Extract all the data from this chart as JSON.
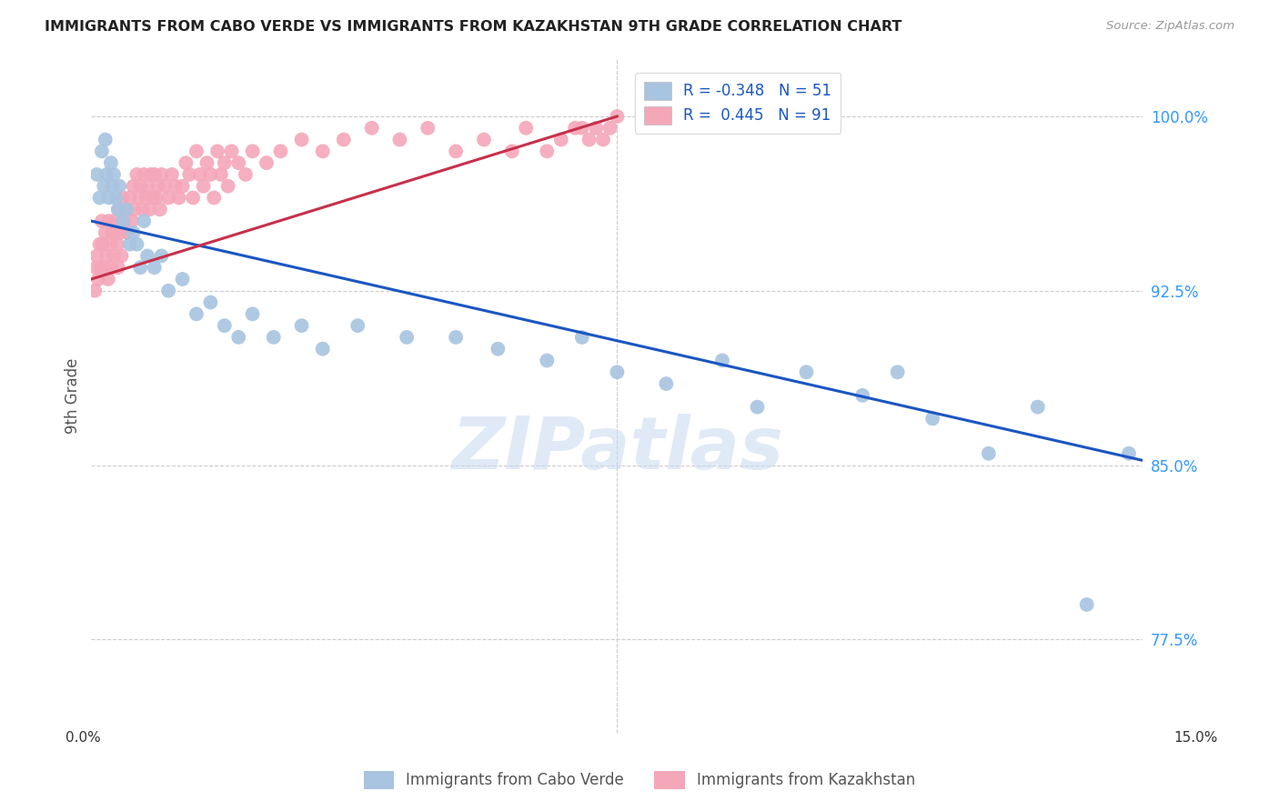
{
  "title": "IMMIGRANTS FROM CABO VERDE VS IMMIGRANTS FROM KAZAKHSTAN 9TH GRADE CORRELATION CHART",
  "source": "Source: ZipAtlas.com",
  "ylabel": "9th Grade",
  "xmin": 0.0,
  "xmax": 15.0,
  "ymin": 73.5,
  "ymax": 102.5,
  "yticks": [
    77.5,
    85.0,
    92.5,
    100.0
  ],
  "ytick_labels": [
    "77.5%",
    "85.0%",
    "92.5%",
    "100.0%"
  ],
  "legend1_label": "R = -0.348   N = 51",
  "legend2_label": "R =  0.445   N = 91",
  "cabo_verde_color": "#a8c4e0",
  "kazakhstan_color": "#f4a7b9",
  "cabo_verde_line_color": "#1a56c4",
  "kazakhstan_line_color": "#c8304a",
  "watermark_text": "ZIPatlas",
  "watermark_color": "#c8d8f0",
  "cabo_verde_x": [
    0.08,
    0.12,
    0.15,
    0.18,
    0.2,
    0.22,
    0.25,
    0.28,
    0.3,
    0.32,
    0.35,
    0.38,
    0.4,
    0.45,
    0.5,
    0.55,
    0.6,
    0.65,
    0.7,
    0.75,
    0.8,
    0.9,
    1.0,
    1.1,
    1.3,
    1.5,
    1.7,
    1.9,
    2.1,
    2.3,
    2.6,
    3.0,
    3.3,
    3.8,
    4.5,
    5.2,
    5.8,
    6.5,
    7.0,
    7.5,
    8.2,
    9.0,
    9.5,
    10.2,
    11.0,
    11.5,
    12.0,
    12.8,
    13.5,
    14.2,
    14.8
  ],
  "cabo_verde_y": [
    97.5,
    96.5,
    98.5,
    97.0,
    99.0,
    97.5,
    96.5,
    98.0,
    97.0,
    97.5,
    96.5,
    96.0,
    97.0,
    95.5,
    96.0,
    94.5,
    95.0,
    94.5,
    93.5,
    95.5,
    94.0,
    93.5,
    94.0,
    92.5,
    93.0,
    91.5,
    92.0,
    91.0,
    90.5,
    91.5,
    90.5,
    91.0,
    90.0,
    91.0,
    90.5,
    90.5,
    90.0,
    89.5,
    90.5,
    89.0,
    88.5,
    89.5,
    87.5,
    89.0,
    88.0,
    89.0,
    87.0,
    85.5,
    87.5,
    79.0,
    85.5
  ],
  "kazakhstan_x": [
    0.05,
    0.07,
    0.08,
    0.1,
    0.12,
    0.13,
    0.15,
    0.16,
    0.18,
    0.2,
    0.22,
    0.24,
    0.25,
    0.27,
    0.28,
    0.3,
    0.32,
    0.33,
    0.35,
    0.37,
    0.38,
    0.4,
    0.42,
    0.43,
    0.45,
    0.47,
    0.5,
    0.52,
    0.55,
    0.58,
    0.6,
    0.62,
    0.65,
    0.68,
    0.7,
    0.73,
    0.75,
    0.78,
    0.8,
    0.83,
    0.85,
    0.88,
    0.9,
    0.93,
    0.95,
    0.98,
    1.0,
    1.05,
    1.1,
    1.15,
    1.2,
    1.25,
    1.3,
    1.35,
    1.4,
    1.45,
    1.5,
    1.55,
    1.6,
    1.65,
    1.7,
    1.75,
    1.8,
    1.85,
    1.9,
    1.95,
    2.0,
    2.1,
    2.2,
    2.3,
    2.5,
    2.7,
    3.0,
    3.3,
    3.6,
    4.0,
    4.4,
    4.8,
    5.2,
    5.6,
    6.0,
    6.2,
    6.5,
    6.7,
    6.9,
    7.0,
    7.1,
    7.2,
    7.3,
    7.4,
    7.5
  ],
  "kazakhstan_y": [
    92.5,
    93.5,
    94.0,
    93.0,
    94.5,
    93.5,
    95.5,
    94.5,
    93.5,
    95.0,
    94.0,
    93.0,
    95.5,
    94.5,
    93.5,
    95.0,
    94.0,
    95.5,
    95.0,
    94.5,
    93.5,
    96.0,
    95.0,
    94.0,
    96.5,
    95.5,
    96.0,
    95.0,
    96.5,
    95.5,
    97.0,
    96.0,
    97.5,
    96.5,
    97.0,
    96.0,
    97.5,
    96.5,
    97.0,
    96.0,
    97.5,
    96.5,
    97.5,
    96.5,
    97.0,
    96.0,
    97.5,
    97.0,
    96.5,
    97.5,
    97.0,
    96.5,
    97.0,
    98.0,
    97.5,
    96.5,
    98.5,
    97.5,
    97.0,
    98.0,
    97.5,
    96.5,
    98.5,
    97.5,
    98.0,
    97.0,
    98.5,
    98.0,
    97.5,
    98.5,
    98.0,
    98.5,
    99.0,
    98.5,
    99.0,
    99.5,
    99.0,
    99.5,
    98.5,
    99.0,
    98.5,
    99.5,
    98.5,
    99.0,
    99.5,
    99.5,
    99.0,
    99.5,
    99.0,
    99.5,
    100.0
  ],
  "cv_trend_x0": 0.0,
  "cv_trend_x1": 15.0,
  "cv_trend_y0": 95.5,
  "cv_trend_y1": 85.2,
  "kaz_trend_x0": 0.0,
  "kaz_trend_x1": 7.5,
  "kaz_trend_y0": 93.0,
  "kaz_trend_y1": 100.0
}
